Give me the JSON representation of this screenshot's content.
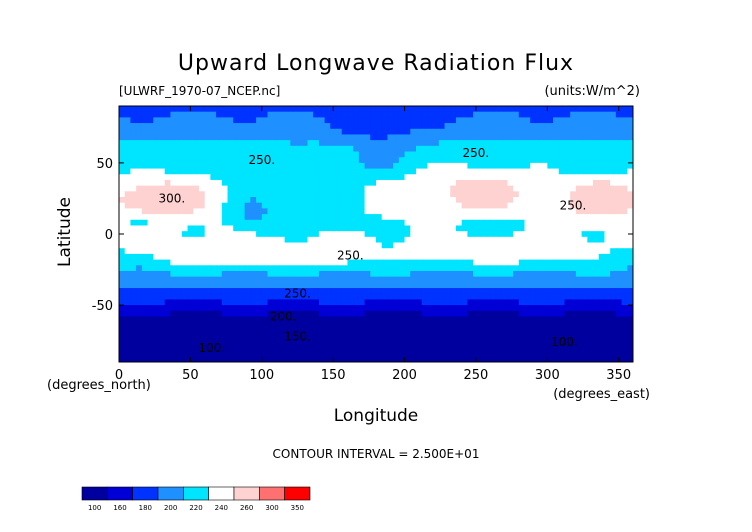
{
  "chart_data": {
    "type": "heatmap",
    "title": "Upward Longwave Radiation Flux",
    "file_label": "[ULWRF_1970-07_NCEP.nc]",
    "units_label": "(units:W/m^2)",
    "xlabel": "Longitude",
    "x_unit_label": "(degrees_east)",
    "ylabel": "Latitude",
    "y_unit_label": "(degrees_north)",
    "xlim": [
      0,
      360
    ],
    "ylim": [
      -90,
      90
    ],
    "x_ticks": [
      0,
      50,
      100,
      150,
      200,
      250,
      300,
      350
    ],
    "y_ticks": [
      -50,
      0,
      50
    ],
    "contour_interval_label": "CONTOUR INTERVAL = 2.500E+01",
    "contour_labels": [
      {
        "text": "250.",
        "lon": 100,
        "lat": 52
      },
      {
        "text": "250.",
        "lon": 250,
        "lat": 57
      },
      {
        "text": "250.",
        "lon": 318,
        "lat": 20
      },
      {
        "text": "250.",
        "lon": 162,
        "lat": -15
      },
      {
        "text": "250.",
        "lon": 125,
        "lat": -42
      },
      {
        "text": "300.",
        "lon": 37,
        "lat": 25
      },
      {
        "text": "200.",
        "lon": 115,
        "lat": -58
      },
      {
        "text": "150.",
        "lon": 125,
        "lat": -72
      },
      {
        "text": "100.",
        "lon": 65,
        "lat": -80
      },
      {
        "text": "100.",
        "lon": 312,
        "lat": -76
      }
    ],
    "colorbar": {
      "levels": [
        100,
        160,
        180,
        200,
        220,
        240,
        260,
        300,
        350
      ],
      "colors": [
        "#00009e",
        "#0000d6",
        "#0033ff",
        "#1e90ff",
        "#00e5ff",
        "#ffffff",
        "#ffd2d2",
        "#ff7070",
        "#ff0000"
      ]
    }
  }
}
